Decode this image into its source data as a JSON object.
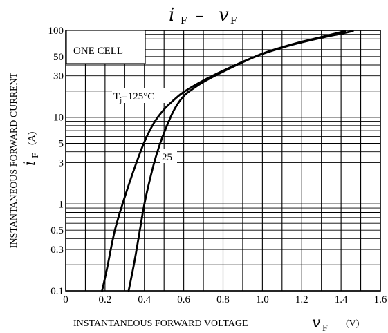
{
  "chart_data": {
    "type": "line",
    "title": {
      "var1": "i",
      "sub1": "F",
      "dash": "–",
      "var2": "v",
      "sub2": "F"
    },
    "xlabel": {
      "text": "INSTANTANEOUS FORWARD VOLTAGE",
      "var": "v",
      "sub": "F",
      "unit": "(V)"
    },
    "ylabel": {
      "text": "INSTANTANEOUS FORWARD CURRENT",
      "var": "i",
      "sub": "F",
      "unit": "(A)"
    },
    "xlim": [
      0,
      1.6
    ],
    "ylim": [
      0.1,
      100
    ],
    "y_scale": "log",
    "grid": true,
    "x_ticks": [
      {
        "value": 0,
        "label": "0"
      },
      {
        "value": 0.2,
        "label": "0.2"
      },
      {
        "value": 0.4,
        "label": "0.4"
      },
      {
        "value": 0.6,
        "label": "0.6"
      },
      {
        "value": 0.8,
        "label": "0.8"
      },
      {
        "value": 1.0,
        "label": "1.0"
      },
      {
        "value": 1.2,
        "label": "1.2"
      },
      {
        "value": 1.4,
        "label": "1.4"
      },
      {
        "value": 1.6,
        "label": "1.6"
      }
    ],
    "y_ticks": [
      {
        "value": 0.1,
        "label": "0.1"
      },
      {
        "value": 0.3,
        "label": "0.3"
      },
      {
        "value": 0.5,
        "label": "0.5"
      },
      {
        "value": 1,
        "label": "1"
      },
      {
        "value": 3,
        "label": "3"
      },
      {
        "value": 5,
        "label": "5"
      },
      {
        "value": 10,
        "label": "10"
      },
      {
        "value": 30,
        "label": "30"
      },
      {
        "value": 50,
        "label": "50"
      },
      {
        "value": 100,
        "label": "100"
      }
    ],
    "annotations": {
      "box": "ONE CELL",
      "tj_prefix": "T",
      "tj_sub": "j",
      "tj_value": "=125°C",
      "label_25": "25"
    },
    "series": [
      {
        "label_ref": "Tj=125°C",
        "x": [
          0.185,
          0.21,
          0.25,
          0.3,
          0.35,
          0.4,
          0.45,
          0.5,
          0.55,
          0.6,
          0.7,
          0.8,
          0.9,
          1.0,
          1.1,
          1.2,
          1.3,
          1.4,
          1.46
        ],
        "y": [
          0.1,
          0.18,
          0.5,
          1.2,
          2.6,
          5.2,
          8.7,
          12.3,
          15.8,
          19.5,
          26.5,
          34.3,
          43.5,
          53.5,
          63.3,
          72.9,
          82.3,
          91.7,
          98
        ]
      },
      {
        "label_ref": "25",
        "x": [
          0.32,
          0.35,
          0.38,
          0.4,
          0.43,
          0.46,
          0.5,
          0.55,
          0.6,
          0.65,
          0.7,
          0.8,
          0.9,
          1.0,
          1.1,
          1.2,
          1.3,
          1.37,
          1.42
        ],
        "y": [
          0.1,
          0.22,
          0.55,
          1.0,
          2.0,
          3.6,
          6.6,
          12.0,
          17.5,
          21.5,
          25.5,
          33.5,
          43.0,
          54.0,
          64.0,
          74.0,
          84.0,
          92.0,
          98
        ]
      }
    ]
  }
}
